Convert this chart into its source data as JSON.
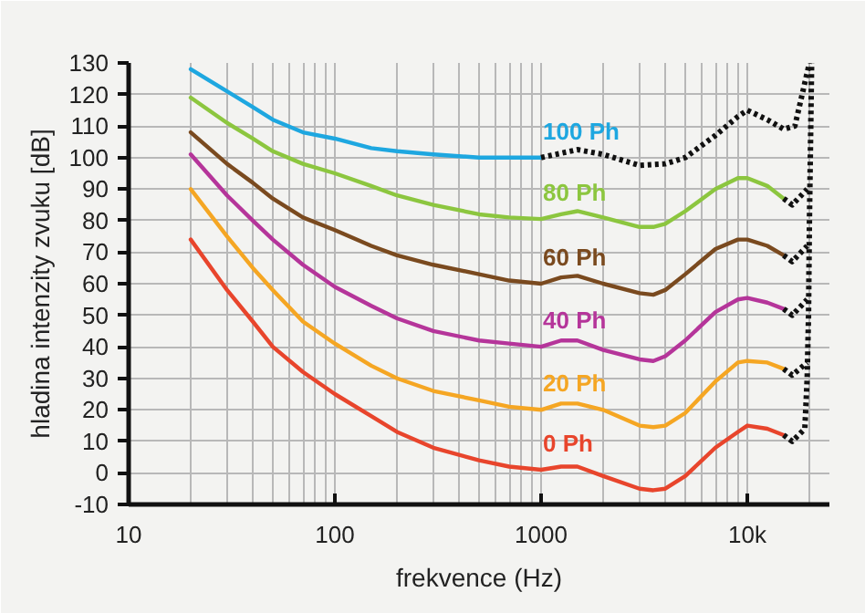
{
  "chart_data": {
    "type": "line",
    "xlabel": "frekvence (Hz)",
    "ylabel": "hladina intenzity zvuku [dB]",
    "log": "x",
    "xlim": [
      10,
      25000
    ],
    "ylim": [
      -10,
      130
    ],
    "xticks": [
      10,
      100,
      1000,
      {
        "value": 10000,
        "label": "10k"
      },
      {
        "value": 20,
        "label": null
      },
      {
        "value": 30,
        "label": null
      },
      {
        "value": 40,
        "label": null
      },
      {
        "value": 50,
        "label": null
      },
      {
        "value": 60,
        "label": null
      },
      {
        "value": 70,
        "label": null
      },
      {
        "value": 80,
        "label": null
      },
      {
        "value": 90,
        "label": null
      },
      {
        "value": 200,
        "label": null
      },
      {
        "value": 300,
        "label": null
      },
      {
        "value": 400,
        "label": null
      },
      {
        "value": 500,
        "label": null
      },
      {
        "value": 600,
        "label": null
      },
      {
        "value": 700,
        "label": null
      },
      {
        "value": 800,
        "label": null
      },
      {
        "value": 900,
        "label": null
      },
      {
        "value": 2000,
        "label": null
      },
      {
        "value": 3000,
        "label": null
      },
      {
        "value": 4000,
        "label": null
      },
      {
        "value": 5000,
        "label": null
      },
      {
        "value": 6000,
        "label": null
      },
      {
        "value": 7000,
        "label": null
      },
      {
        "value": 8000,
        "label": null
      },
      {
        "value": 9000,
        "label": null
      },
      {
        "value": 20000,
        "label": null
      }
    ],
    "yticks": [
      -10,
      0,
      10,
      20,
      30,
      40,
      50,
      60,
      70,
      80,
      90,
      100,
      110,
      120,
      130
    ],
    "grid": true,
    "line_style": "solid",
    "marker": "none",
    "x": [
      20,
      30,
      40,
      50,
      70,
      100,
      150,
      200,
      300,
      500,
      700,
      1000,
      1250,
      1500,
      2000,
      3000,
      3500,
      4000,
      5000,
      7000,
      9000,
      10000,
      12500,
      15000
    ],
    "series": [
      {
        "name": "100 Ph",
        "color": "#1ea7e0",
        "x": [
          20,
          30,
          40,
          50,
          70,
          100,
          150,
          200,
          300,
          500,
          700,
          1000
        ],
        "values": [
          128,
          121,
          116,
          112,
          108,
          106,
          103,
          102,
          101,
          100,
          100,
          100
        ]
      },
      {
        "name": "80 Ph",
        "color": "#8cc63f",
        "values": [
          119,
          111,
          106,
          102,
          98,
          95,
          91,
          88,
          85,
          82,
          81,
          80.5,
          82,
          83,
          81,
          78,
          78,
          79,
          83,
          90,
          93.5,
          93.5,
          91,
          87
        ]
      },
      {
        "name": "60 Ph",
        "color": "#7a4a1f",
        "values": [
          108,
          98,
          92,
          87,
          81,
          77,
          72,
          69,
          66,
          63,
          61,
          60,
          62,
          62.5,
          60,
          57,
          56.5,
          58,
          63,
          71,
          74,
          74,
          72,
          69
        ]
      },
      {
        "name": "40 Ph",
        "color": "#b5359a",
        "values": [
          101,
          88,
          80,
          74,
          66,
          59,
          53,
          49,
          45,
          42,
          41,
          40,
          42,
          42,
          39,
          36,
          35.5,
          37,
          42,
          51,
          55,
          55.5,
          54,
          52
        ]
      },
      {
        "name": "20 Ph",
        "color": "#f5a623",
        "values": [
          90,
          75,
          65,
          58,
          48,
          41,
          34,
          30,
          26,
          23,
          21,
          20,
          22,
          22,
          20,
          15,
          14.5,
          15,
          19,
          29,
          35,
          35.5,
          35,
          33
        ]
      },
      {
        "name": "0 Ph",
        "color": "#e8452c",
        "values": [
          74,
          58,
          48,
          40,
          32,
          25,
          18,
          13,
          8,
          4,
          2,
          1,
          2,
          2,
          -1,
          -5,
          -5.5,
          -5,
          -1,
          8,
          13,
          15,
          14,
          12
        ]
      },
      {
        "color": "#111111",
        "line_style": "dotted",
        "x": [
          1000,
          1500,
          2000,
          3000,
          4000,
          5000,
          7000,
          9000,
          10000,
          12500,
          15000,
          17000,
          20000
        ],
        "values": [
          100,
          102.5,
          101,
          97.5,
          98,
          100,
          107,
          113,
          115,
          112,
          109,
          110,
          130
        ]
      },
      {
        "color": "#111111",
        "line_style": "dotted",
        "x": [
          15000,
          16500,
          19000,
          19500,
          19800,
          20000,
          20300,
          20500
        ],
        "values": [
          12,
          10,
          14,
          30,
          50,
          80,
          110,
          130
        ]
      },
      {
        "color": "#111111",
        "line_style": "dotted",
        "x": [
          15000,
          16500,
          19500
        ],
        "values": [
          33,
          31,
          35
        ]
      },
      {
        "color": "#111111",
        "line_style": "dotted",
        "x": [
          15000,
          16500,
          19500
        ],
        "values": [
          52,
          50,
          55
        ]
      },
      {
        "color": "#111111",
        "line_style": "dotted",
        "x": [
          15000,
          16500,
          19500
        ],
        "values": [
          69,
          67,
          72
        ]
      },
      {
        "color": "#111111",
        "line_style": "dotted",
        "x": [
          15000,
          16500,
          19500
        ],
        "values": [
          87,
          85,
          90
        ]
      }
    ]
  }
}
